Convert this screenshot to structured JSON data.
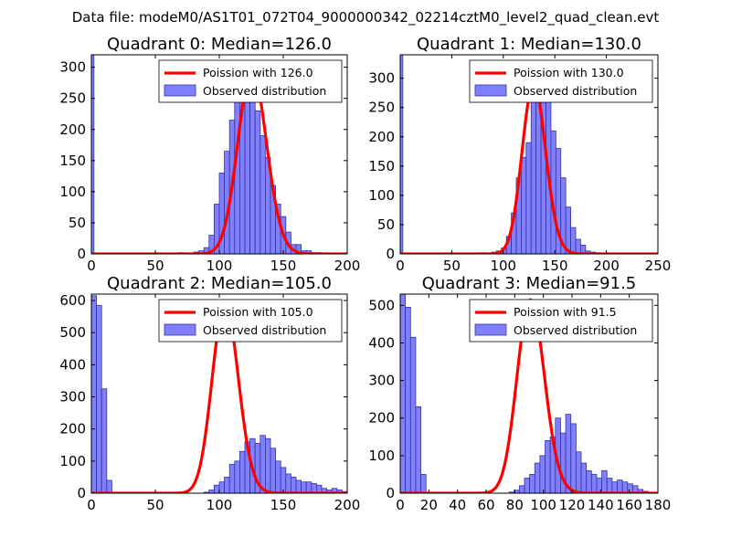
{
  "figure": {
    "title": "Data file: modeM0/AS1T01_072T04_9000000342_02214cztM0_level2_quad_clean.evt"
  },
  "chart_data": [
    {
      "type": "bar",
      "title": "Quadrant 0: Median=126.0",
      "median": 126.0,
      "xlim": [
        0,
        200
      ],
      "ylim": [
        0,
        320
      ],
      "xticks": [
        0,
        50,
        100,
        150,
        200
      ],
      "yticks": [
        0,
        50,
        100,
        150,
        200,
        250,
        300
      ],
      "bin_width": 4,
      "hist_start": 68,
      "hist_values": [
        2,
        0,
        0,
        3,
        5,
        10,
        30,
        80,
        130,
        165,
        215,
        260,
        300,
        305,
        280,
        230,
        190,
        155,
        110,
        80,
        60,
        35,
        15,
        15,
        5,
        5,
        2,
        2
      ],
      "spike": {
        "x": 0,
        "width": 2,
        "value": 320
      },
      "curve_peak": 295,
      "legend": [
        "Poission with 126.0",
        "Observed distribution"
      ]
    },
    {
      "type": "bar",
      "title": "Quadrant 1: Median=130.0",
      "median": 130.0,
      "xlim": [
        0,
        250
      ],
      "ylim": [
        0,
        340
      ],
      "xticks": [
        0,
        50,
        100,
        150,
        200,
        250
      ],
      "yticks": [
        0,
        50,
        100,
        150,
        200,
        250,
        300
      ],
      "bin_width": 4.8,
      "hist_start": 79,
      "hist_values": [
        2,
        0,
        3,
        5,
        10,
        30,
        70,
        130,
        165,
        190,
        300,
        320,
        300,
        280,
        210,
        180,
        130,
        80,
        45,
        25,
        15,
        5,
        3,
        2
      ],
      "spike": {
        "x": 0,
        "width": 2.5,
        "value": 340
      },
      "curve_peak": 290,
      "legend": [
        "Poission with 130.0",
        "Observed distribution"
      ]
    },
    {
      "type": "bar",
      "title": "Quadrant 2: Median=105.0",
      "median": 105.0,
      "xlim": [
        0,
        200
      ],
      "ylim": [
        0,
        620
      ],
      "xticks": [
        0,
        50,
        100,
        150,
        200
      ],
      "yticks": [
        0,
        100,
        200,
        300,
        400,
        500,
        600
      ],
      "bin_width": 4,
      "lead_bars": [
        {
          "x": 0,
          "value": 615
        },
        {
          "x": 4,
          "value": 585
        },
        {
          "x": 8,
          "value": 325
        },
        {
          "x": 12,
          "value": 40
        }
      ],
      "hist_start": 88,
      "hist_values": [
        3,
        10,
        25,
        35,
        50,
        90,
        100,
        130,
        160,
        170,
        155,
        180,
        170,
        140,
        100,
        80,
        60,
        50,
        40,
        35,
        35,
        30,
        25,
        15,
        10,
        15,
        10,
        5
      ],
      "curve_peak": 590,
      "legend": [
        "Poission with 105.0",
        "Observed distribution"
      ]
    },
    {
      "type": "bar",
      "title": "Quadrant 3: Median=91.5",
      "median": 91.5,
      "xlim": [
        0,
        180
      ],
      "ylim": [
        0,
        530
      ],
      "xticks": [
        0,
        20,
        40,
        60,
        80,
        100,
        120,
        140,
        160,
        180
      ],
      "yticks": [
        0,
        100,
        200,
        300,
        400,
        500
      ],
      "bin_width": 3.6,
      "lead_bars": [
        {
          "x": 0,
          "value": 530
        },
        {
          "x": 3.6,
          "value": 495
        },
        {
          "x": 7.2,
          "value": 415
        },
        {
          "x": 10.8,
          "value": 230
        },
        {
          "x": 14.4,
          "value": 50
        }
      ],
      "hist_start": 76,
      "hist_values": [
        3,
        8,
        20,
        40,
        50,
        80,
        100,
        140,
        150,
        200,
        160,
        210,
        185,
        110,
        80,
        60,
        50,
        40,
        60,
        40,
        30,
        35,
        30,
        25,
        20,
        10,
        5
      ],
      "curve_peak": 515,
      "legend": [
        "Poission with 91.5",
        "Observed distribution"
      ]
    }
  ],
  "colors": {
    "bar_fill": "#8080ff",
    "bar_stroke": "#33339a",
    "curve": "#ff0000",
    "axis": "#000000"
  }
}
